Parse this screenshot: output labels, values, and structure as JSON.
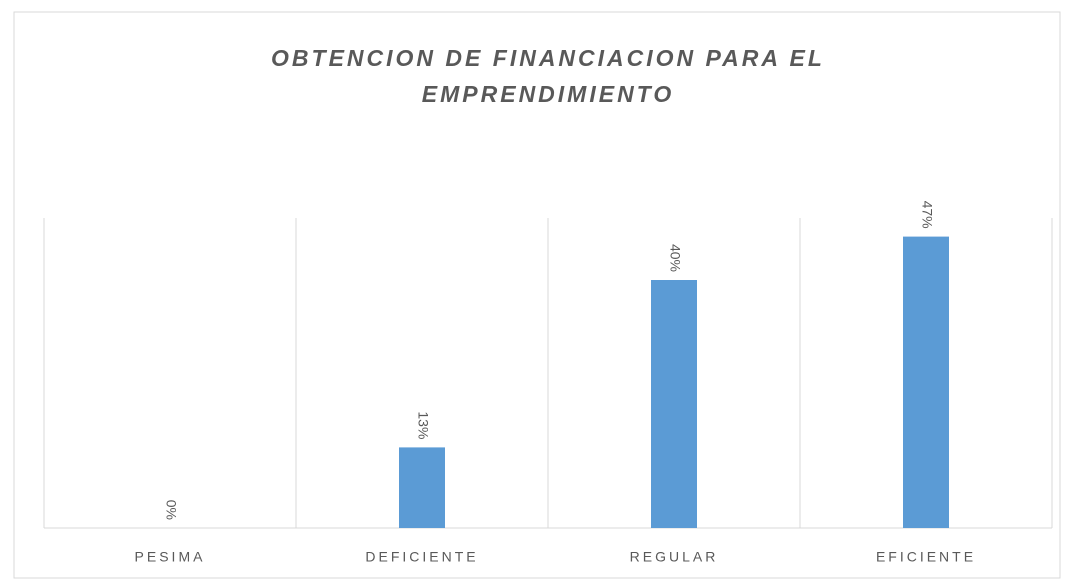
{
  "chart_data": {
    "type": "bar",
    "title": "OBTENCION DE FINANCIACION PARA EL EMPRENDIMIENTO",
    "categories": [
      "PESIMA",
      "DEFICIENTE",
      "REGULAR",
      "EFICIENTE"
    ],
    "values": [
      0,
      13,
      40,
      47
    ],
    "value_labels": [
      "0%",
      "13%",
      "40%",
      "47%"
    ],
    "color": "#5b9bd5",
    "ylim": [
      0,
      50
    ]
  }
}
